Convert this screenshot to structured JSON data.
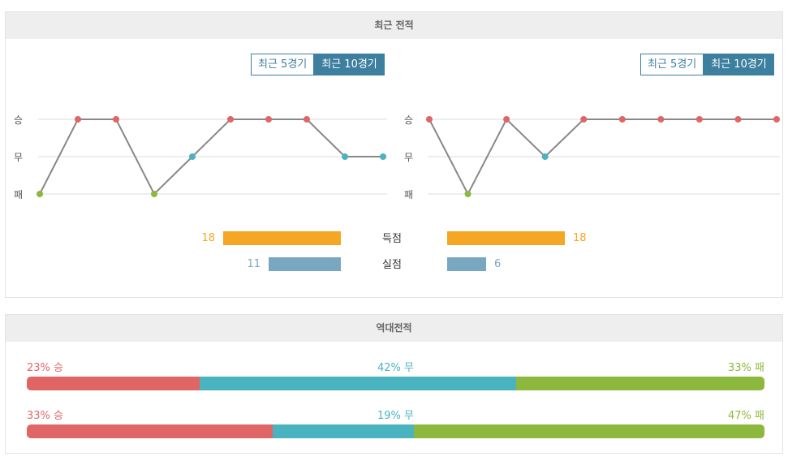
{
  "colors": {
    "win": "#e06666",
    "draw": "#4ab3c0",
    "loss": "#8cb83e",
    "scored": "#f5a623",
    "conceded": "#7aa7c0",
    "accent": "#3d7f9f"
  },
  "recent": {
    "title": "최근 전적",
    "toggle_5": "최근 5경기",
    "toggle_10": "최근 10경기",
    "y_labels": {
      "win": "승",
      "draw": "무",
      "loss": "패"
    },
    "left_results": [
      "패",
      "승",
      "승",
      "패",
      "무",
      "승",
      "승",
      "승",
      "무",
      "무"
    ],
    "right_results": [
      "승",
      "패",
      "승",
      "무",
      "승",
      "승",
      "승",
      "승",
      "승",
      "승"
    ],
    "scored_label": "득점",
    "conceded_label": "실점",
    "left_scored": 18,
    "right_scored": 18,
    "left_conceded": 11,
    "right_conceded": 6
  },
  "h2h": {
    "title": "역대전적",
    "rows": [
      {
        "win_pct": 23,
        "draw_pct": 42,
        "loss_pct": 33,
        "win_text": "23% 승",
        "draw_text": "42% 무",
        "loss_text": "33% 패"
      },
      {
        "win_pct": 33,
        "draw_pct": 19,
        "loss_pct": 47,
        "win_text": "33% 승",
        "draw_text": "19% 무",
        "loss_text": "47% 패"
      }
    ]
  }
}
